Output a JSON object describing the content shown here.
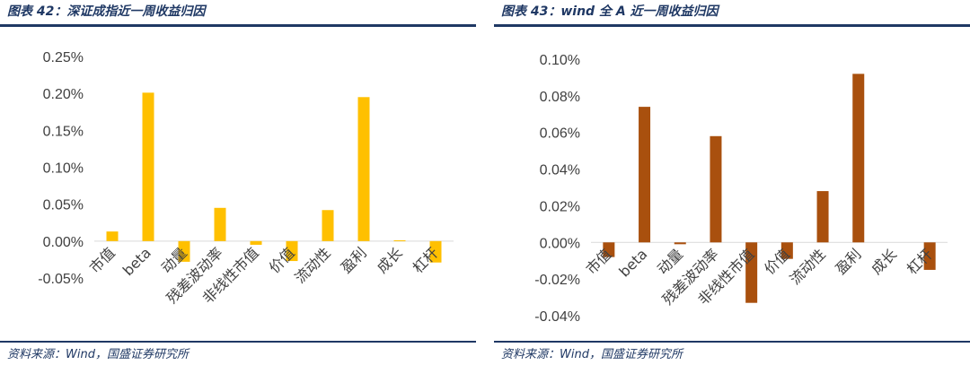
{
  "panels": [
    {
      "figure_title": "图表 42：深证成指近一周收益归因",
      "source": "资料来源：Wind，国盛证券研究所"
    },
    {
      "figure_title": "图表 43：wind 全 A 近一周收益归因",
      "source": "资料来源：Wind，国盛证券研究所"
    }
  ],
  "chart_data": [
    {
      "type": "bar",
      "title": "",
      "xlabel": "",
      "ylabel": "",
      "categories": [
        "市值",
        "beta",
        "动量",
        "残差波动率",
        "非线性市值",
        "价值",
        "流动性",
        "盈利",
        "成长",
        "杠杆"
      ],
      "series": [
        {
          "values": [
            0.013,
            0.201,
            -0.028,
            0.045,
            -0.005,
            -0.027,
            0.042,
            0.195,
            0.001,
            -0.029
          ]
        }
      ],
      "ylim": [
        -0.05,
        0.25
      ],
      "yticks": [
        -0.05,
        0.0,
        0.05,
        0.1,
        0.15,
        0.2,
        0.25
      ],
      "ytick_labels": [
        "-0.05%",
        "0.00%",
        "0.05%",
        "0.10%",
        "0.15%",
        "0.20%",
        "0.25%"
      ],
      "color": "#ffc000",
      "grid": false,
      "legend": "none"
    },
    {
      "type": "bar",
      "title": "",
      "xlabel": "",
      "ylabel": "",
      "categories": [
        "市值",
        "beta",
        "动量",
        "残差波动率",
        "非线性市值",
        "价值",
        "流动性",
        "盈利",
        "成长",
        "杠杆"
      ],
      "series": [
        {
          "values": [
            -0.008,
            0.074,
            -0.001,
            0.058,
            -0.033,
            -0.009,
            0.028,
            0.092,
            0.0,
            -0.015
          ]
        }
      ],
      "ylim": [
        -0.04,
        0.1
      ],
      "yticks": [
        -0.04,
        -0.02,
        0.0,
        0.02,
        0.04,
        0.06,
        0.08,
        0.1
      ],
      "ytick_labels": [
        "-0.04%",
        "-0.02%",
        "0.00%",
        "0.02%",
        "0.04%",
        "0.06%",
        "0.08%",
        "0.10%"
      ],
      "color": "#a9500e",
      "grid": false,
      "legend": "none"
    }
  ]
}
